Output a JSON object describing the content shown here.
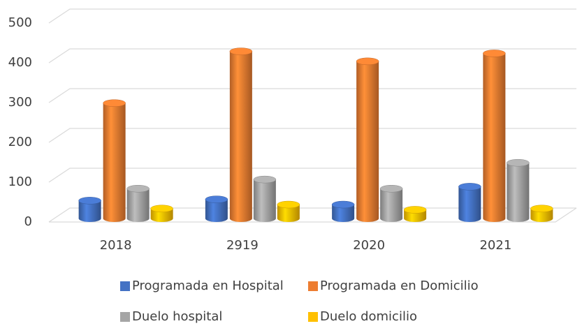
{
  "chart_data": {
    "type": "bar3d",
    "categories": [
      "2018",
      "2919",
      "2020",
      "2021"
    ],
    "series": [
      {
        "name": "Programada en Hospital",
        "color": "#4472c4",
        "values": [
          45,
          48,
          35,
          80
        ]
      },
      {
        "name": "Programada en Domicilio",
        "color": "#ed7d31",
        "values": [
          290,
          420,
          395,
          415
        ]
      },
      {
        "name": "Duelo hospital",
        "color": "#a5a5a5",
        "values": [
          75,
          98,
          75,
          140
        ]
      },
      {
        "name": "Duelo domicilio",
        "color": "#ffc000",
        "values": [
          25,
          35,
          22,
          25
        ]
      }
    ],
    "ylim": [
      0,
      500
    ],
    "yticks": [
      0,
      100,
      200,
      300,
      400,
      500
    ],
    "grid": true
  }
}
